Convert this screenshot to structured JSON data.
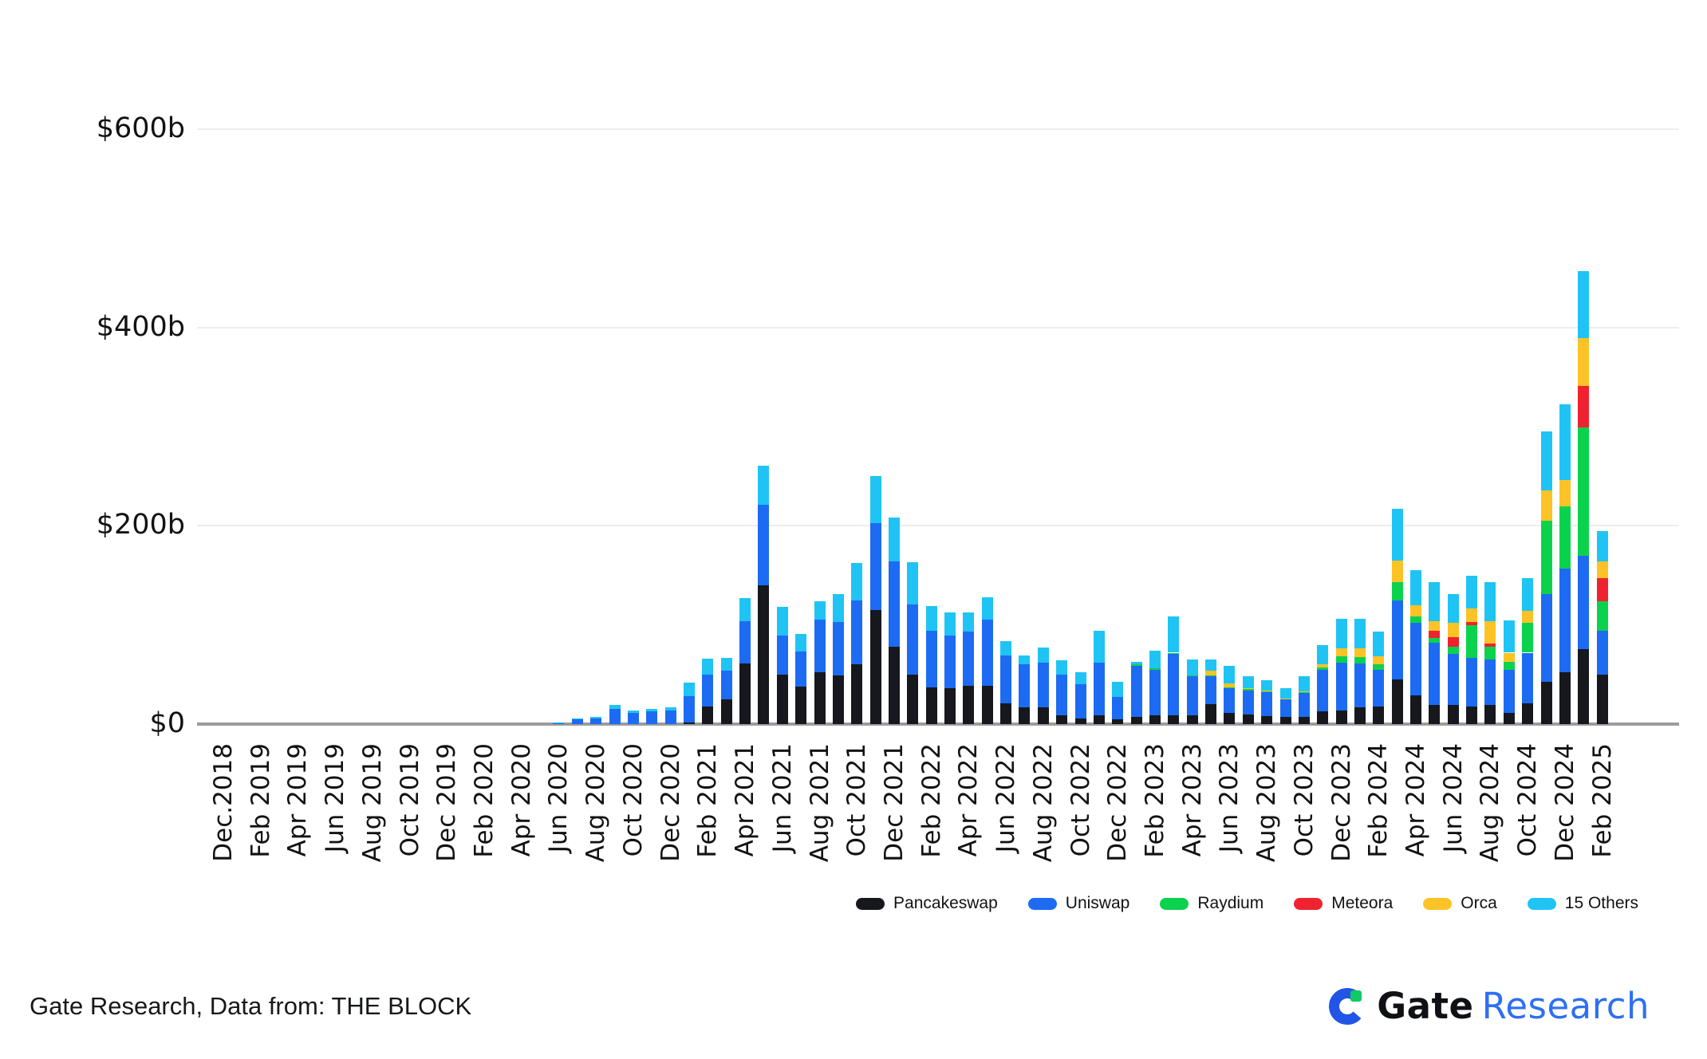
{
  "page": {
    "background": "#ffffff"
  },
  "chart_data": {
    "type": "bar",
    "stacked": true,
    "title": "",
    "xlabel": "",
    "ylabel": "",
    "unit": "USD billions",
    "grid": true,
    "legend_position": "bottom-right",
    "ylim": [
      0,
      640
    ],
    "y_ticks": [
      {
        "value": 0,
        "label": "$0"
      },
      {
        "value": 200,
        "label": "$200b"
      },
      {
        "value": 400,
        "label": "$400b"
      },
      {
        "value": 600,
        "label": "$600b"
      }
    ],
    "x_tick_label_every": 2,
    "categories": [
      "Dec.2018",
      "Jan 2019",
      "Feb 2019",
      "Mar 2019",
      "Apr 2019",
      "May 2019",
      "Jun 2019",
      "Jul 2019",
      "Aug 2019",
      "Sep 2019",
      "Oct 2019",
      "Nov 2019",
      "Dec 2019",
      "Jan 2020",
      "Feb 2020",
      "Mar 2020",
      "Apr 2020",
      "May 2020",
      "Jun 2020",
      "Jul 2020",
      "Aug 2020",
      "Sep 2020",
      "Oct 2020",
      "Nov 2020",
      "Dec 2020",
      "Jan 2021",
      "Feb 2021",
      "Mar 2021",
      "Apr 2021",
      "May 2021",
      "Jun 2021",
      "Jul 2021",
      "Aug 2021",
      "Sep 2021",
      "Oct 2021",
      "Nov 2021",
      "Dec 2021",
      "Jan 2022",
      "Feb 2022",
      "Mar 2022",
      "Apr 2022",
      "May 2022",
      "Jun 2022",
      "Jul 2022",
      "Aug 2022",
      "Sep 2022",
      "Oct 2022",
      "Nov 2022",
      "Dec 2022",
      "Jan 2023",
      "Feb 2023",
      "Mar 2023",
      "Apr 2023",
      "May 2023",
      "Jun 2023",
      "Jul 2023",
      "Aug 2023",
      "Sep 2023",
      "Oct 2023",
      "Nov 2023",
      "Dec 2023",
      "Jan 2024",
      "Feb 2024",
      "Mar 2024",
      "Apr 2024",
      "May 2024",
      "Jun 2024",
      "Jul 2024",
      "Aug 2024",
      "Sep 2024",
      "Oct 2024",
      "Nov 2024",
      "Dec 2024",
      "Jan 2025",
      "Feb 2025"
    ],
    "series": [
      {
        "name": "Pancakeswap",
        "color": "#16181d",
        "values": [
          0,
          0,
          0,
          0,
          0,
          0,
          0,
          0,
          0,
          0,
          0,
          0,
          0,
          0,
          0,
          0,
          0,
          0,
          0,
          0,
          0,
          0,
          0,
          0,
          0,
          2,
          18,
          25,
          61,
          140,
          50,
          38,
          52,
          49,
          60,
          115,
          78,
          50,
          37,
          36,
          39,
          39,
          21,
          17,
          17,
          9,
          6,
          9,
          5,
          7,
          9,
          9,
          9,
          20,
          11,
          10,
          8,
          7,
          7,
          13,
          14,
          17,
          18,
          45,
          29,
          19,
          19,
          18,
          19,
          11,
          21,
          43,
          52,
          76,
          50
        ]
      },
      {
        "name": "Uniswap",
        "color": "#1d6bf3",
        "values": [
          0.2,
          0.2,
          0.2,
          0.3,
          0.3,
          0.3,
          0.4,
          0.4,
          0.4,
          0.3,
          0.3,
          0.3,
          0.3,
          0.3,
          0.4,
          0.4,
          0.3,
          0.4,
          1.2,
          4.5,
          6,
          15.5,
          11.5,
          12.5,
          13.5,
          26,
          32,
          29,
          43,
          81,
          39,
          35,
          53,
          54,
          65,
          88,
          86,
          71,
          57,
          53,
          54,
          66,
          48,
          43,
          45,
          41,
          34,
          53,
          22,
          52,
          46,
          62,
          39,
          28,
          25,
          24,
          24.5,
          18,
          24,
          42,
          48,
          44,
          37,
          80,
          73,
          63,
          52,
          49,
          46,
          43.5,
          51,
          88,
          105,
          94,
          44
        ]
      },
      {
        "name": "Raydium",
        "color": "#0bd24d",
        "values": [
          0,
          0,
          0,
          0,
          0,
          0,
          0,
          0,
          0,
          0,
          0,
          0,
          0,
          0,
          0,
          0,
          0,
          0,
          0,
          0,
          0,
          0,
          0,
          0,
          0,
          0,
          0,
          0,
          0,
          0,
          0,
          0,
          0,
          0,
          0,
          0,
          0,
          0,
          0,
          0,
          0,
          0,
          0,
          0,
          0,
          0,
          0,
          0,
          0,
          1,
          1,
          1,
          1,
          1,
          1,
          1,
          0.5,
          0.5,
          1,
          2,
          6.5,
          6.5,
          5.5,
          18,
          7,
          5,
          7,
          33,
          13,
          8,
          30,
          74,
          63,
          129,
          29.5
        ]
      },
      {
        "name": "Meteora",
        "color": "#f0222f",
        "values": [
          0,
          0,
          0,
          0,
          0,
          0,
          0,
          0,
          0,
          0,
          0,
          0,
          0,
          0,
          0,
          0,
          0,
          0,
          0,
          0,
          0,
          0,
          0,
          0,
          0,
          0,
          0,
          0,
          0,
          0,
          0,
          0,
          0,
          0,
          0,
          0,
          0,
          0,
          0,
          0,
          0,
          0,
          0,
          0,
          0,
          0,
          0,
          0,
          0,
          0,
          0,
          0,
          0,
          0,
          0,
          0,
          0,
          0,
          0,
          0,
          0,
          0,
          0,
          0,
          0,
          7,
          9.5,
          3,
          3.5,
          0,
          0,
          0,
          0,
          42,
          24
        ]
      },
      {
        "name": "Orca",
        "color": "#fdc326",
        "values": [
          0,
          0,
          0,
          0,
          0,
          0,
          0,
          0,
          0,
          0,
          0,
          0,
          0,
          0,
          0,
          0,
          0,
          0,
          0,
          0,
          0,
          0,
          0,
          0,
          0,
          0,
          0,
          0,
          0,
          0,
          0,
          0,
          0,
          0,
          0,
          0,
          0,
          0,
          0,
          0,
          0,
          0,
          0,
          0,
          0,
          0,
          0,
          0,
          0,
          0,
          0,
          0,
          0,
          5,
          4,
          1,
          0.5,
          0.5,
          1,
          3,
          8,
          9,
          8,
          22,
          11,
          9.5,
          15,
          13.5,
          22,
          9.5,
          12,
          31,
          26,
          48,
          16.5
        ]
      },
      {
        "name": "15 Others",
        "color": "#1fc4f4",
        "values": [
          0.1,
          0.1,
          0.1,
          0.1,
          0.1,
          0.1,
          0.2,
          0.2,
          0.2,
          0.2,
          0.2,
          0.2,
          0.2,
          0.2,
          0.2,
          0.3,
          0.2,
          0.2,
          0.5,
          1,
          1.5,
          4,
          2.5,
          3,
          3.5,
          14,
          16,
          13,
          23,
          40,
          29,
          18,
          19,
          28.5,
          37.5,
          47,
          44,
          42,
          25,
          24,
          20,
          23,
          15,
          9,
          15,
          14,
          12,
          32,
          16,
          3,
          18,
          37,
          16.5,
          11,
          17.5,
          12,
          10.5,
          10,
          15,
          20,
          29.5,
          29.5,
          24.5,
          52,
          35,
          39.5,
          29,
          33.5,
          39.5,
          32.5,
          33.5,
          59,
          76.5,
          68,
          31
        ]
      }
    ]
  },
  "footer": {
    "source_text": "Gate Research, Data from: THE BLOCK",
    "logo": {
      "gate_text": "Gate",
      "research_text": "Research",
      "blue": "#2254e6",
      "green": "#0ecb63"
    }
  }
}
